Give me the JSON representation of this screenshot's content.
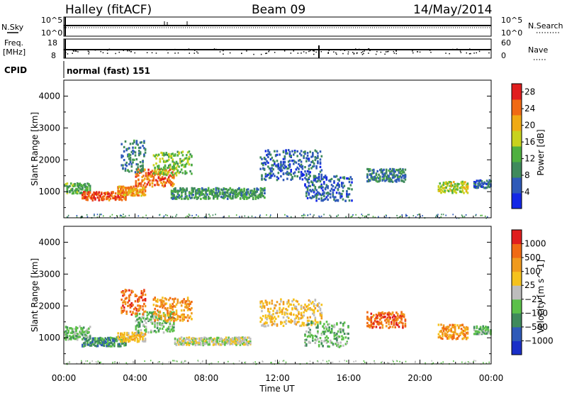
{
  "header": {
    "station": "Halley (fitACF)",
    "beam": "Beam 09",
    "date": "14/May/2014"
  },
  "noise_panel": {
    "left_label": "N.Sky",
    "right_label": "N.Search",
    "right_line_style": "dotted",
    "ticks": [
      "10^5",
      "10^0"
    ]
  },
  "freq_panel": {
    "left_label_1": "Freq.",
    "left_label_2": "[MHz]",
    "left_ticks": [
      "18",
      "8"
    ],
    "right_label": "Nave",
    "right_ticks": [
      "60",
      "0"
    ]
  },
  "cpid": {
    "label": "CPID",
    "value": "normal (fast) 151"
  },
  "chart_data": [
    {
      "type": "heatmap",
      "name": "power",
      "ylabel": "Slant Range [km]",
      "xlabel": "",
      "xlim": [
        "00:00",
        "00:00"
      ],
      "ylim": [
        180,
        4500
      ],
      "yticks": [
        1000,
        2000,
        3000,
        4000
      ],
      "colorbar": {
        "label": "Power [dB]",
        "ticks": [
          4,
          8,
          12,
          16,
          20,
          24,
          28
        ],
        "range": [
          0,
          30
        ],
        "colors": [
          "#1428e6",
          "#2f5ab8",
          "#3f8a5c",
          "#4fb040",
          "#c8d21e",
          "#f0aa14",
          "#f06a14",
          "#e01e1e"
        ]
      },
      "bands": [
        {
          "t0": 0.0,
          "t1": 1.5,
          "r0": 930,
          "r1": 1250,
          "v": 12
        },
        {
          "t0": 1.0,
          "t1": 3.5,
          "r0": 720,
          "r1": 980,
          "v": 26
        },
        {
          "t0": 3.0,
          "t1": 4.6,
          "r0": 860,
          "r1": 1150,
          "v": 22
        },
        {
          "t0": 4.0,
          "t1": 6.2,
          "r0": 1150,
          "r1": 1700,
          "v": 24
        },
        {
          "t0": 5.0,
          "t1": 7.2,
          "r0": 1500,
          "r1": 2250,
          "v": 14
        },
        {
          "t0": 6.0,
          "t1": 11.3,
          "r0": 760,
          "r1": 1100,
          "v": 10
        },
        {
          "t0": 3.2,
          "t1": 4.6,
          "r0": 1600,
          "r1": 2600,
          "v": 8
        },
        {
          "t0": 11.0,
          "t1": 14.5,
          "r0": 1350,
          "r1": 2300,
          "v": 6
        },
        {
          "t0": 13.5,
          "t1": 16.2,
          "r0": 700,
          "r1": 1500,
          "v": 6
        },
        {
          "t0": 17.0,
          "t1": 19.2,
          "r0": 1300,
          "r1": 1700,
          "v": 8
        },
        {
          "t0": 21.0,
          "t1": 22.7,
          "r0": 950,
          "r1": 1300,
          "v": 16
        },
        {
          "t0": 23.0,
          "t1": 24.0,
          "r0": 1100,
          "r1": 1350,
          "v": 6
        }
      ]
    },
    {
      "type": "heatmap",
      "name": "velocity",
      "ylabel": "Slant Range [km]",
      "xlabel": "Time UT",
      "xlim": [
        "00:00",
        "00:00"
      ],
      "xticks": [
        "00:00",
        "04:00",
        "08:00",
        "12:00",
        "16:00",
        "20:00",
        "00:00"
      ],
      "ylim": [
        180,
        4500
      ],
      "yticks": [
        1000,
        2000,
        3000,
        4000
      ],
      "colorbar": {
        "label": "Velocity [m s^-1]",
        "ticks": [
          "1000",
          "500",
          "100",
          "25",
          "−25",
          "−100",
          "−500",
          "−1000"
        ],
        "colors": [
          "#1a2fc8",
          "#2f5ab8",
          "#3f8a5c",
          "#5cc04a",
          "#bdbdbd",
          "#f5c21e",
          "#f09a1e",
          "#f06a14",
          "#e01e1e"
        ]
      },
      "bands": [
        {
          "t0": 0.0,
          "t1": 1.5,
          "r0": 930,
          "r1": 1350,
          "v": 3
        },
        {
          "t0": 1.0,
          "t1": 3.5,
          "r0": 720,
          "r1": 1000,
          "v": 2
        },
        {
          "t0": 3.0,
          "t1": 4.6,
          "r0": 860,
          "r1": 1150,
          "v": 5
        },
        {
          "t0": 4.0,
          "t1": 6.2,
          "r0": 1150,
          "r1": 1800,
          "v": 3
        },
        {
          "t0": 5.0,
          "t1": 7.2,
          "r0": 1500,
          "r1": 2250,
          "v": 6
        },
        {
          "t0": 6.2,
          "t1": 10.5,
          "r0": 760,
          "r1": 1000,
          "v": 4
        },
        {
          "t0": 3.2,
          "t1": 4.6,
          "r0": 1700,
          "r1": 2500,
          "v": 7
        },
        {
          "t0": 11.0,
          "t1": 14.5,
          "r0": 1350,
          "r1": 2200,
          "v": 5
        },
        {
          "t0": 13.5,
          "t1": 16.0,
          "r0": 700,
          "r1": 1500,
          "v": 3
        },
        {
          "t0": 17.0,
          "t1": 19.2,
          "r0": 1300,
          "r1": 1800,
          "v": 7
        },
        {
          "t0": 21.0,
          "t1": 22.7,
          "r0": 950,
          "r1": 1400,
          "v": 6
        },
        {
          "t0": 23.0,
          "t1": 24.0,
          "r0": 1100,
          "r1": 1350,
          "v": 3
        }
      ]
    }
  ],
  "x_axis": {
    "label": "Time UT",
    "ticks": [
      "00:00",
      "04:00",
      "08:00",
      "12:00",
      "16:00",
      "20:00",
      "00:00"
    ]
  }
}
